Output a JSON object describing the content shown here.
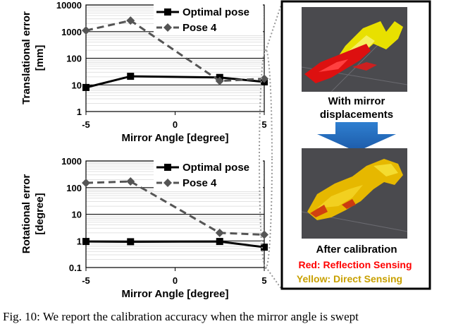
{
  "chart_data": [
    {
      "type": "line",
      "ylabel": "Translational error\n[mm]",
      "xlabel": "Mirror Angle [degree]",
      "yscale": "log",
      "ylim": [
        1,
        10000
      ],
      "xlim": [
        -5,
        5
      ],
      "x_ticks": [
        "-5",
        "0",
        "5"
      ],
      "y_ticks": [
        "1",
        "10",
        "100",
        "1000",
        "10000"
      ],
      "legend_position": "top-right",
      "series": [
        {
          "name": "Optimal pose",
          "color": "#000000",
          "style": "solid",
          "marker": "square",
          "x": [
            -5,
            -2.5,
            2.5,
            5
          ],
          "y": [
            8,
            21,
            19,
            13
          ]
        },
        {
          "name": "Pose 4",
          "color": "#555555",
          "style": "dashed",
          "marker": "diamond",
          "x": [
            -5,
            -2.5,
            2.5,
            5
          ],
          "y": [
            1100,
            2600,
            14,
            17
          ]
        }
      ]
    },
    {
      "type": "line",
      "ylabel": "Rotational error\n[degree]",
      "xlabel": "Mirror Angle [degree]",
      "yscale": "log",
      "ylim": [
        0.1,
        1000
      ],
      "xlim": [
        -5,
        5
      ],
      "x_ticks": [
        "-5",
        "0",
        "5"
      ],
      "y_ticks": [
        "0.1",
        "1",
        "10",
        "100",
        "1000"
      ],
      "legend_position": "top-right",
      "series": [
        {
          "name": "Optimal pose",
          "color": "#000000",
          "style": "solid",
          "marker": "square",
          "x": [
            -5,
            -2.5,
            2.5,
            5
          ],
          "y": [
            0.95,
            0.93,
            0.95,
            0.58
          ]
        },
        {
          "name": "Pose 4",
          "color": "#555555",
          "style": "dashed",
          "marker": "diamond",
          "x": [
            -5,
            -2.5,
            2.5,
            5
          ],
          "y": [
            150,
            170,
            2.0,
            1.7
          ]
        }
      ]
    }
  ],
  "panel": {
    "top_label_1": "With mirror",
    "top_label_2": "displacements",
    "bottom_label": "After calibration",
    "red_label": "Red: Reflection Sensing",
    "yellow_label": "Yellow: Direct Sensing"
  },
  "caption": "Fig. 10: We report the calibration accuracy when the mirror angle is swept"
}
